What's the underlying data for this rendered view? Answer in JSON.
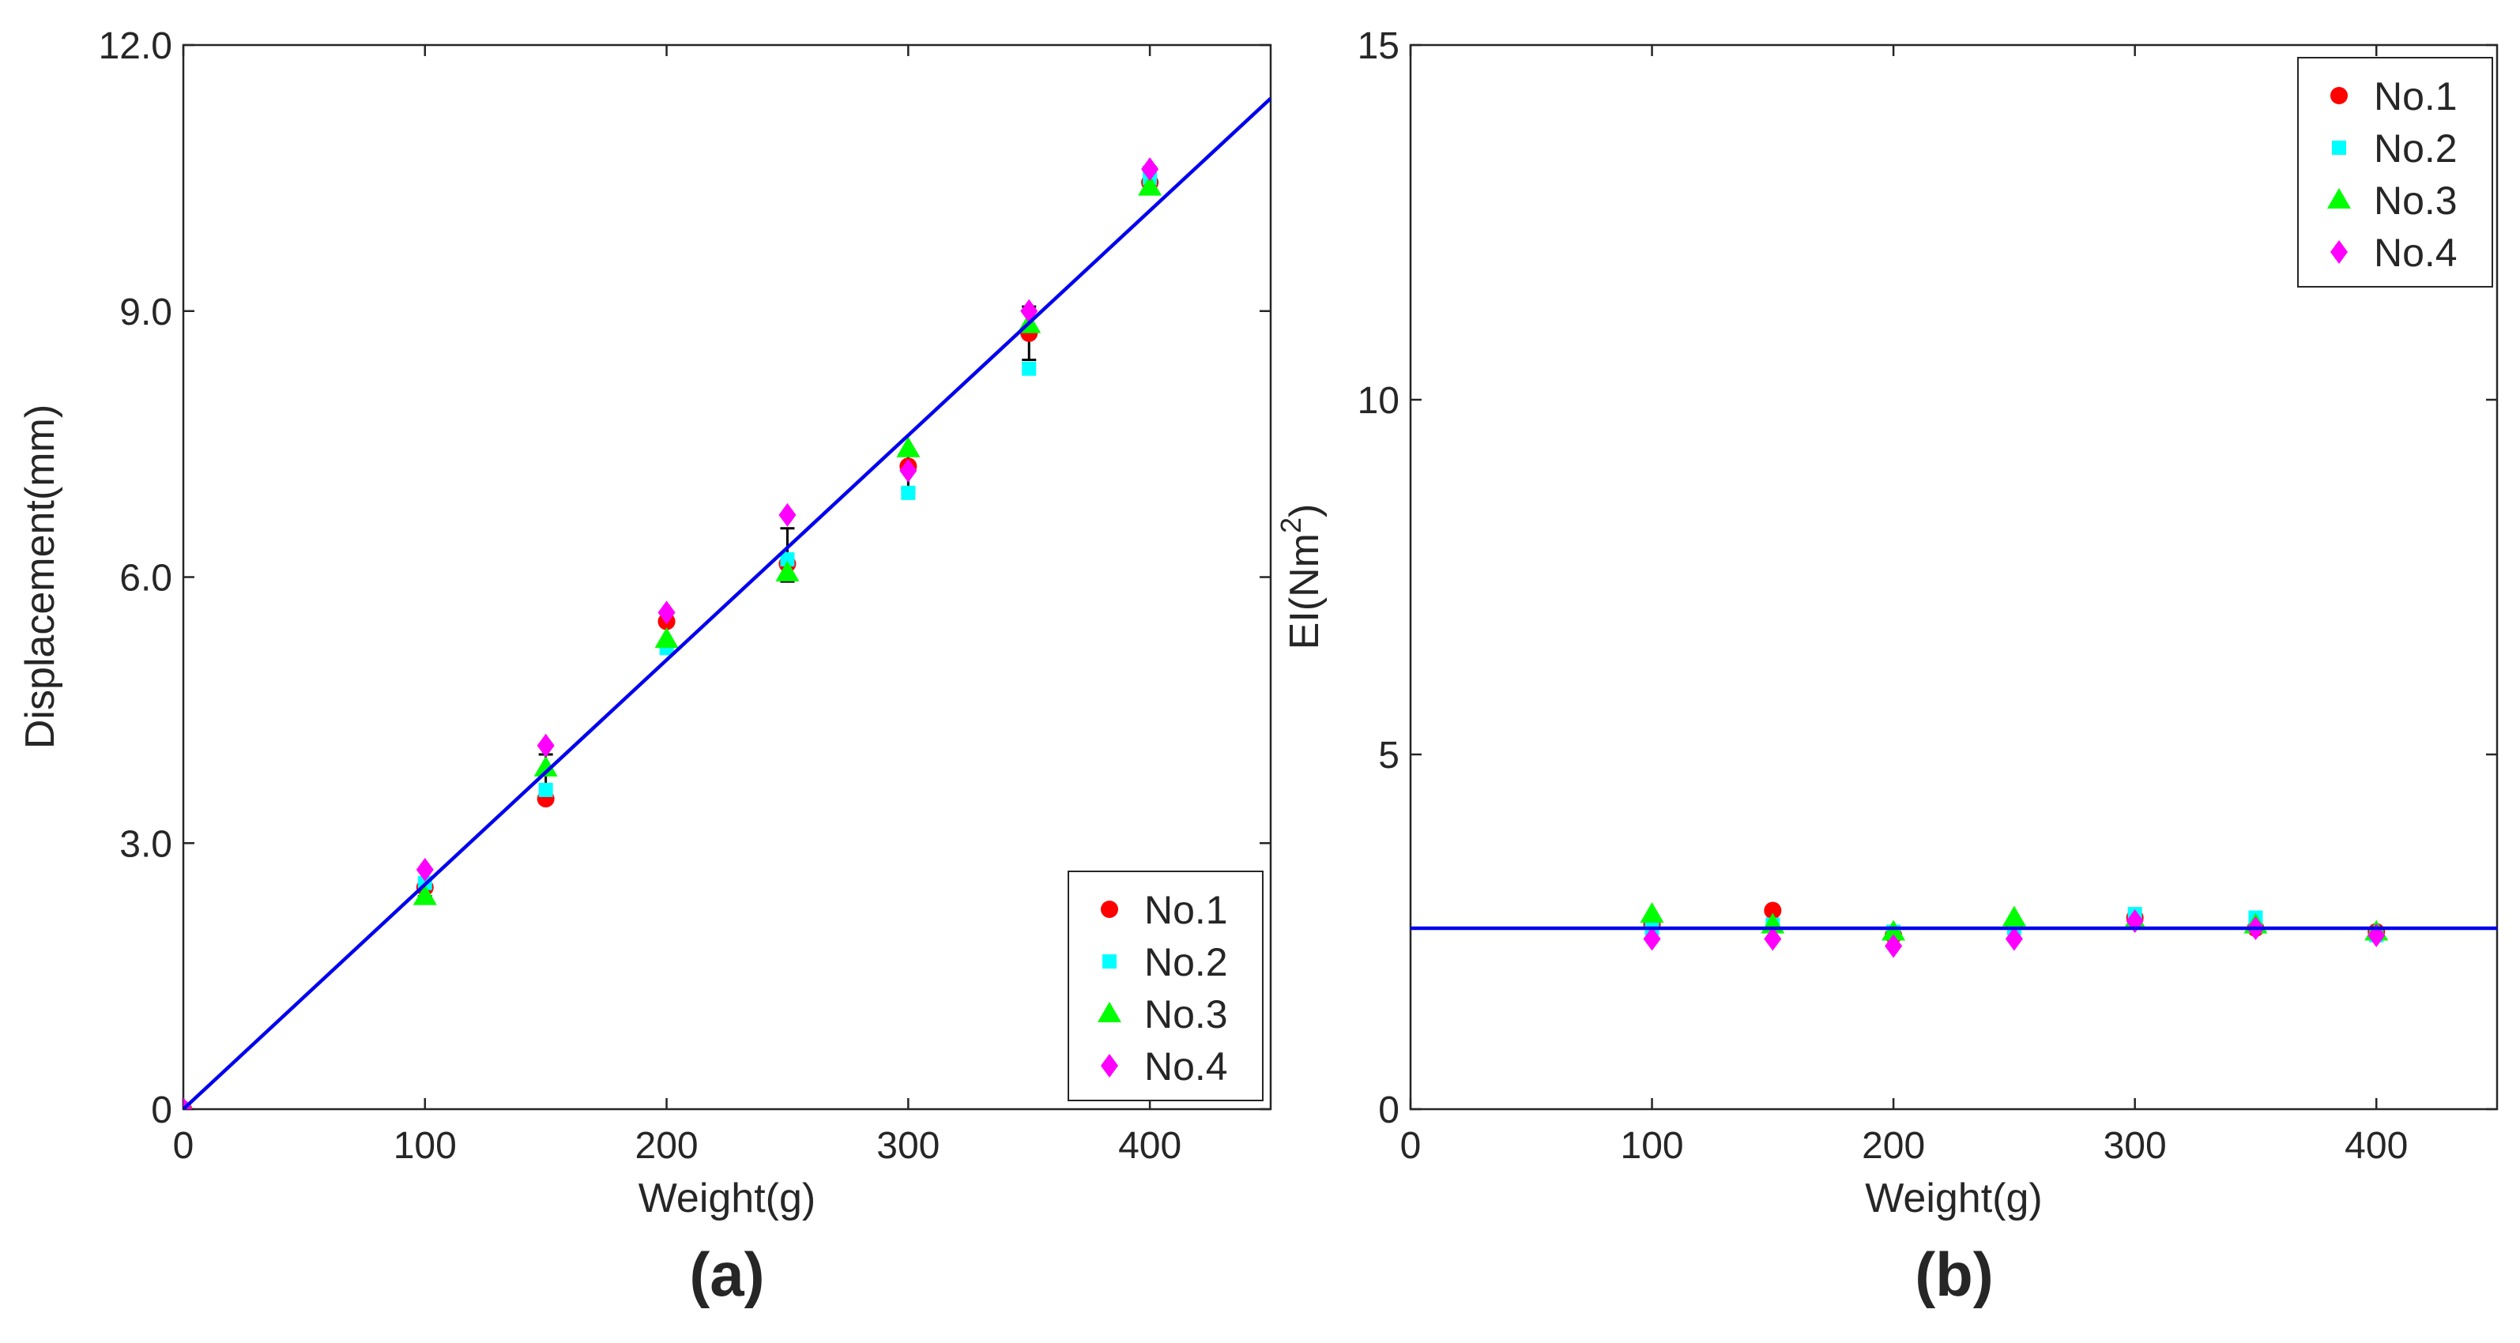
{
  "chart_data": [
    {
      "type": "scatter",
      "panel_label": "(a)",
      "title": "",
      "xlabel": "Weight(g)",
      "ylabel": "Displacement(mm)",
      "xlim": [
        0,
        450
      ],
      "ylim": [
        0,
        12
      ],
      "xticks": [
        0,
        100,
        200,
        300,
        400
      ],
      "xtick_labels": [
        "0",
        "100",
        "200",
        "300",
        "400"
      ],
      "yticks": [
        0,
        3,
        6,
        9,
        12
      ],
      "ytick_labels": [
        "0",
        "3.0",
        "6.0",
        "9.0",
        "12.0"
      ],
      "grid": false,
      "legend_position": "bottom-right",
      "series": [
        {
          "name": "No.1",
          "marker": "circle",
          "color": "#ff0000",
          "x": [
            0,
            100,
            150,
            200,
            250,
            300,
            350,
            400
          ],
          "y": [
            0,
            2.5,
            3.5,
            5.5,
            6.15,
            7.25,
            8.75,
            10.45
          ]
        },
        {
          "name": "No.2",
          "marker": "square",
          "color": "#00ffff",
          "x": [
            0,
            100,
            150,
            200,
            250,
            300,
            350,
            400
          ],
          "y": [
            0,
            2.55,
            3.6,
            5.2,
            6.2,
            6.95,
            8.35,
            10.5
          ]
        },
        {
          "name": "No.3",
          "marker": "triangle",
          "color": "#00ff00",
          "x": [
            0,
            100,
            150,
            200,
            250,
            300,
            350,
            400
          ],
          "y": [
            0,
            2.4,
            3.85,
            5.3,
            6.05,
            7.45,
            8.85,
            10.4
          ]
        },
        {
          "name": "No.4",
          "marker": "diamond",
          "color": "#ff00ff",
          "x": [
            0,
            100,
            150,
            200,
            250,
            300,
            350,
            400
          ],
          "y": [
            0,
            2.7,
            4.1,
            5.6,
            6.7,
            7.2,
            9.0,
            10.6
          ]
        }
      ],
      "error_bars": {
        "color": "#000000",
        "x": [
          100,
          150,
          200,
          250,
          300,
          350,
          400
        ],
        "mean": [
          2.55,
          3.75,
          5.4,
          6.25,
          7.2,
          8.75,
          10.5
        ],
        "err": [
          0.15,
          0.25,
          0.2,
          0.3,
          0.2,
          0.3,
          0.12
        ]
      },
      "fit_line": {
        "color": "#0000ee",
        "slope": 0.02533,
        "intercept": 0,
        "x_range": [
          0,
          450
        ]
      }
    },
    {
      "type": "scatter",
      "panel_label": "(b)",
      "title": "",
      "xlabel": "Weight(g)",
      "ylabel": "EI(Nm",
      "ylabel_superscript": "2",
      "ylabel_suffix": ")",
      "xlim": [
        0,
        450
      ],
      "ylim": [
        0,
        15
      ],
      "xticks": [
        0,
        100,
        200,
        300,
        400
      ],
      "xtick_labels": [
        "0",
        "100",
        "200",
        "300",
        "400"
      ],
      "yticks": [
        0,
        5,
        10,
        15
      ],
      "ytick_labels": [
        "0",
        "5",
        "10",
        "15"
      ],
      "grid": false,
      "legend_position": "top-right",
      "series": [
        {
          "name": "No.1",
          "marker": "circle",
          "color": "#ff0000",
          "x": [
            100,
            150,
            200,
            250,
            300,
            350,
            400
          ],
          "y": [
            2.6,
            2.8,
            2.45,
            2.6,
            2.7,
            2.55,
            2.5
          ]
        },
        {
          "name": "No.2",
          "marker": "square",
          "color": "#00ffff",
          "x": [
            100,
            150,
            200,
            250,
            300,
            350,
            400
          ],
          "y": [
            2.55,
            2.6,
            2.5,
            2.55,
            2.75,
            2.7,
            2.45
          ]
        },
        {
          "name": "No.3",
          "marker": "triangle",
          "color": "#00ff00",
          "x": [
            100,
            150,
            200,
            250,
            300,
            350,
            400
          ],
          "y": [
            2.75,
            2.6,
            2.5,
            2.7,
            2.65,
            2.6,
            2.5
          ]
        },
        {
          "name": "No.4",
          "marker": "diamond",
          "color": "#ff00ff",
          "x": [
            100,
            150,
            200,
            250,
            300,
            350,
            400
          ],
          "y": [
            2.4,
            2.4,
            2.3,
            2.4,
            2.65,
            2.55,
            2.45
          ]
        }
      ],
      "fit_line": {
        "color": "#0000ee",
        "slope": 0,
        "intercept": 2.55,
        "x_range": [
          0,
          450
        ]
      }
    }
  ]
}
